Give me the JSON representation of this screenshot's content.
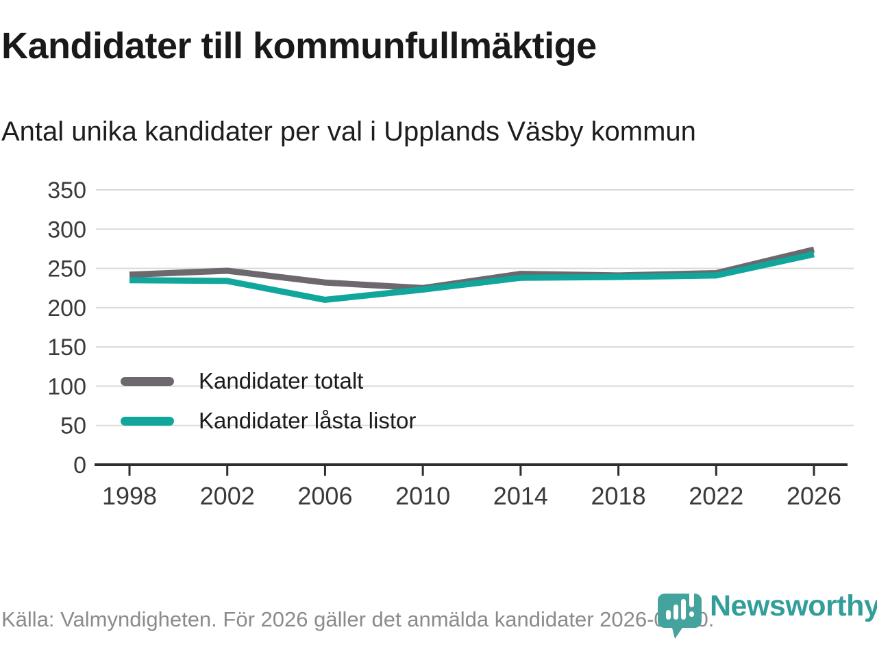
{
  "header": {
    "title": "Kandidater till kommunfullmäktige",
    "subtitle": "Antal unika kandidater per val i Upplands Väsby kommun"
  },
  "chart_data": {
    "type": "line",
    "title": "Kandidater till kommunfullmäktige",
    "subtitle": "Antal unika kandidater per val i Upplands Väsby kommun",
    "x": [
      1998,
      2002,
      2006,
      2010,
      2014,
      2018,
      2022,
      2026
    ],
    "series": [
      {
        "name": "Kandidater totalt",
        "color": "#6d686d",
        "values": [
          242,
          247,
          232,
          225,
          243,
          241,
          244,
          274
        ]
      },
      {
        "name": "Kandidater låsta listor",
        "color": "#10a69b",
        "values": [
          235,
          234,
          210,
          223,
          238,
          239,
          241,
          268
        ]
      }
    ],
    "ylim": [
      0,
      350
    ],
    "yticks": [
      0,
      50,
      100,
      150,
      200,
      250,
      300,
      350
    ],
    "grid": true,
    "legend_position": "inside-left",
    "colors": {
      "gridline": "#d9d9d9",
      "axis": "#2d2d2d",
      "tick_label": "#3a3a3a"
    }
  },
  "legend": {
    "items": [
      {
        "label": "Kandidater totalt"
      },
      {
        "label": "Kandidater låsta listor"
      }
    ]
  },
  "footer": {
    "source": "Källa: Valmyndigheten. För 2026 gäller det anmälda kandidater 2026-04-10.",
    "brand": "Newsworthy",
    "brand_color": "#339e99",
    "logo_icon": "newsworthy-pin-bar-chart-icon"
  }
}
